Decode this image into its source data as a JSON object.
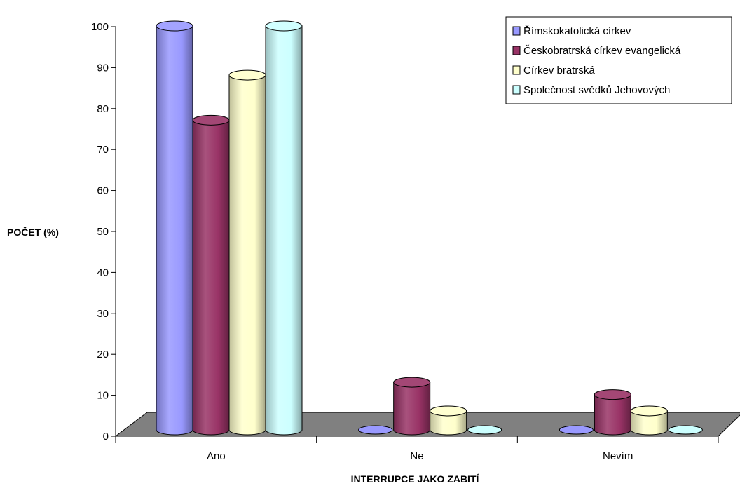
{
  "chart_data": {
    "type": "bar",
    "style": "3d-cylinder",
    "categories": [
      "Ano",
      "Ne",
      "Nevím"
    ],
    "series": [
      {
        "name": "Římskokatolická církev",
        "values": [
          100,
          0,
          0
        ],
        "color": "#9999ff"
      },
      {
        "name": "Českobratrská církev evangelická",
        "values": [
          77,
          13,
          10
        ],
        "color": "#993366"
      },
      {
        "name": "Církev bratrská",
        "values": [
          88,
          6,
          6
        ],
        "color": "#ffffcc"
      },
      {
        "name": "Společnost svědků Jehovových",
        "values": [
          100,
          0,
          0
        ],
        "color": "#ccffff"
      }
    ],
    "xlabel": "INTERRUPCE JAKO ZABITÍ",
    "ylabel": "POČET (%)",
    "ylim": [
      0,
      100
    ],
    "yticks": [
      "0",
      "10",
      "20",
      "30",
      "40",
      "50",
      "60",
      "70",
      "80",
      "90",
      "100"
    ],
    "grid": false,
    "legend": "top-right",
    "floor_color": "#808080"
  }
}
